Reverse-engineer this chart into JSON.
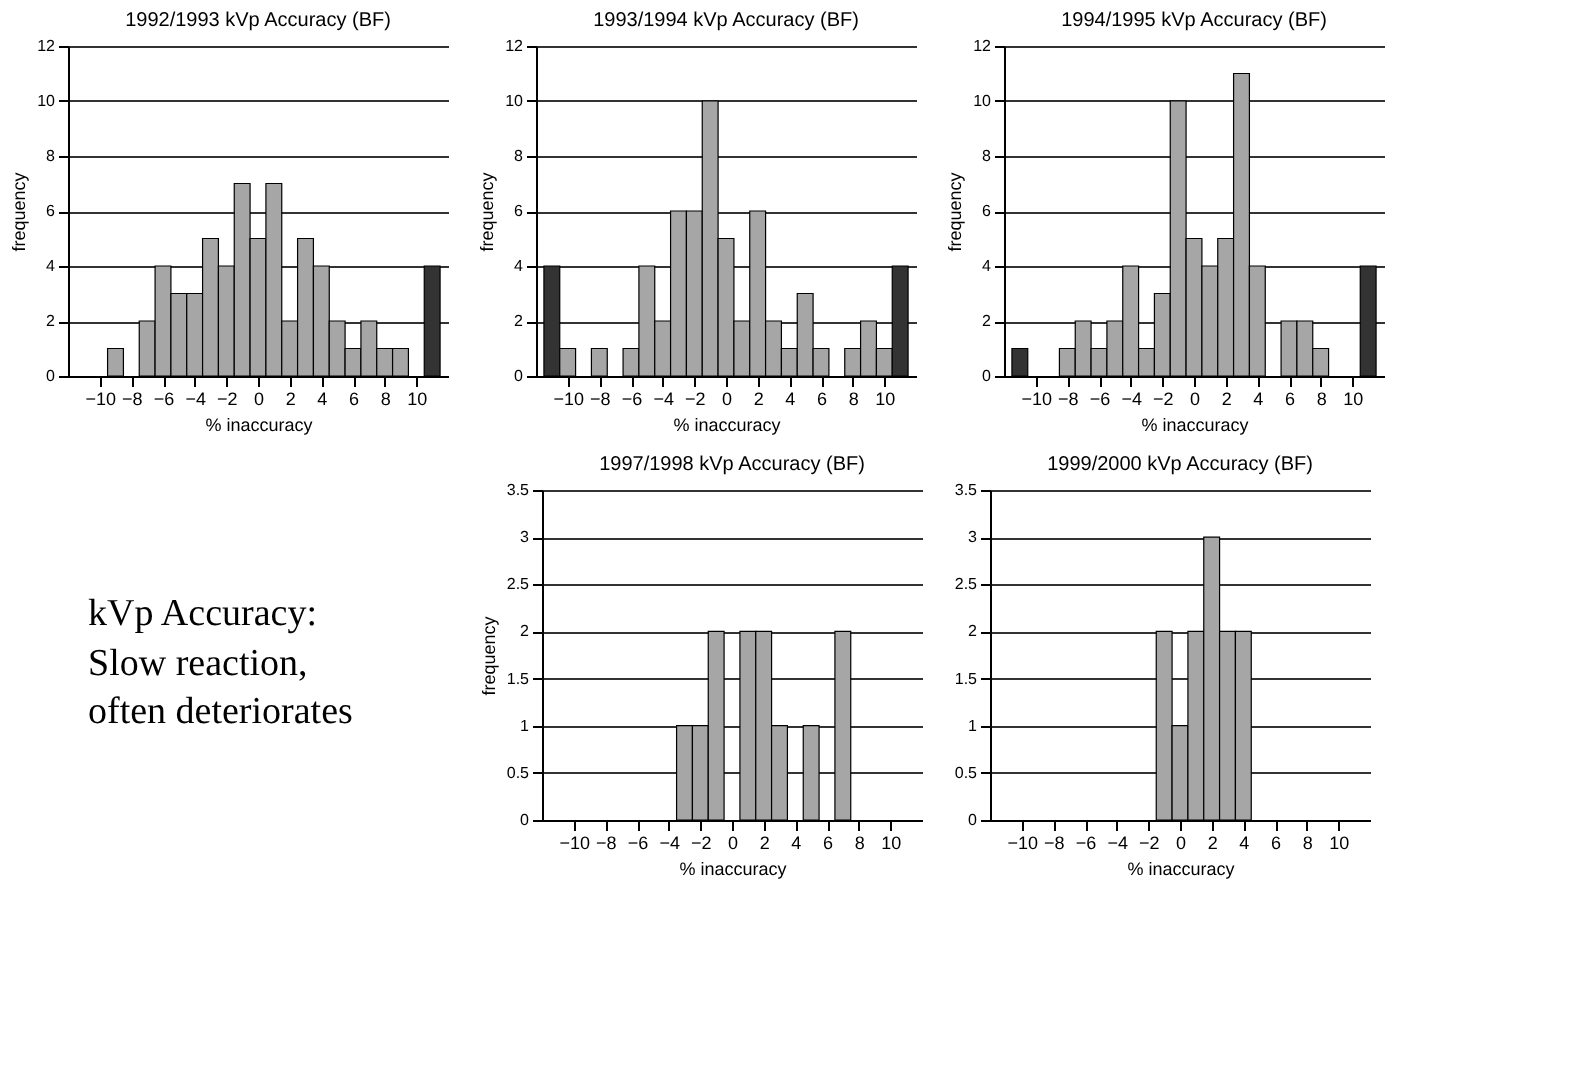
{
  "chart_data": [
    {
      "type": "bar",
      "title": "1992/1993 kVp Accuracy (BF)",
      "xlabel": "% inaccuracy",
      "ylabel": "frequency",
      "x": [
        -11,
        -10,
        -9,
        -8,
        -7,
        -6,
        -5,
        -4,
        -3,
        -2,
        -1,
        0,
        1,
        2,
        3,
        4,
        5,
        6,
        7,
        8,
        9,
        10,
        11
      ],
      "values": [
        0,
        0,
        1,
        0,
        2,
        4,
        3,
        3,
        5,
        4,
        7,
        5,
        7,
        2,
        5,
        4,
        2,
        1,
        2,
        1,
        1,
        0,
        4
      ],
      "colors": [
        "#333333",
        "#a6a6a6",
        "#a6a6a6",
        "#a6a6a6",
        "#a6a6a6",
        "#a6a6a6",
        "#a6a6a6",
        "#a6a6a6",
        "#a6a6a6",
        "#a6a6a6",
        "#a6a6a6",
        "#a6a6a6",
        "#a6a6a6",
        "#a6a6a6",
        "#a6a6a6",
        "#a6a6a6",
        "#a6a6a6",
        "#a6a6a6",
        "#a6a6a6",
        "#a6a6a6",
        "#a6a6a6",
        "#a6a6a6",
        "#333333"
      ],
      "xlim": [
        -12,
        12
      ],
      "xticks": [
        -10,
        -8,
        -6,
        -4,
        -2,
        0,
        2,
        4,
        6,
        8,
        10
      ],
      "ylim": [
        0,
        12
      ],
      "yticks": [
        0,
        2,
        4,
        6,
        8,
        10,
        12
      ],
      "grid": "y"
    },
    {
      "type": "bar",
      "title": "1993/1994 kVp Accuracy (BF)",
      "xlabel": "% inaccuracy",
      "ylabel": "frequency",
      "x": [
        -11,
        -10,
        -9,
        -8,
        -7,
        -6,
        -5,
        -4,
        -3,
        -2,
        -1,
        0,
        1,
        2,
        3,
        4,
        5,
        6,
        7,
        8,
        9,
        10,
        11
      ],
      "values": [
        4,
        1,
        0,
        1,
        0,
        1,
        4,
        2,
        6,
        6,
        10,
        5,
        2,
        6,
        2,
        1,
        3,
        1,
        0,
        1,
        2,
        1,
        4
      ],
      "colors": [
        "#333333",
        "#a6a6a6",
        "#a6a6a6",
        "#a6a6a6",
        "#a6a6a6",
        "#a6a6a6",
        "#a6a6a6",
        "#a6a6a6",
        "#a6a6a6",
        "#a6a6a6",
        "#a6a6a6",
        "#a6a6a6",
        "#a6a6a6",
        "#a6a6a6",
        "#a6a6a6",
        "#a6a6a6",
        "#a6a6a6",
        "#a6a6a6",
        "#a6a6a6",
        "#a6a6a6",
        "#a6a6a6",
        "#a6a6a6",
        "#333333"
      ],
      "xlim": [
        -12,
        12
      ],
      "xticks": [
        -10,
        -8,
        -6,
        -4,
        -2,
        0,
        2,
        4,
        6,
        8,
        10
      ],
      "ylim": [
        0,
        12
      ],
      "yticks": [
        0,
        2,
        4,
        6,
        8,
        10,
        12
      ],
      "grid": "y"
    },
    {
      "type": "bar",
      "title": "1994/1995 kVp Accuracy (BF)",
      "xlabel": "% inaccuracy",
      "ylabel": "frequency",
      "x": [
        -11,
        -10,
        -9,
        -8,
        -7,
        -6,
        -5,
        -4,
        -3,
        -2,
        -1,
        0,
        1,
        2,
        3,
        4,
        5,
        6,
        7,
        8,
        9,
        10,
        11
      ],
      "values": [
        1,
        0,
        0,
        1,
        2,
        1,
        2,
        4,
        1,
        3,
        10,
        5,
        4,
        5,
        11,
        4,
        0,
        2,
        2,
        1,
        0,
        0,
        4
      ],
      "colors": [
        "#333333",
        "#a6a6a6",
        "#a6a6a6",
        "#a6a6a6",
        "#a6a6a6",
        "#a6a6a6",
        "#a6a6a6",
        "#a6a6a6",
        "#a6a6a6",
        "#a6a6a6",
        "#a6a6a6",
        "#a6a6a6",
        "#a6a6a6",
        "#a6a6a6",
        "#a6a6a6",
        "#a6a6a6",
        "#a6a6a6",
        "#a6a6a6",
        "#a6a6a6",
        "#a6a6a6",
        "#a6a6a6",
        "#a6a6a6",
        "#333333"
      ],
      "xlim": [
        -12,
        12
      ],
      "xticks": [
        -10,
        -8,
        -6,
        -4,
        -2,
        0,
        2,
        4,
        6,
        8,
        10
      ],
      "ylim": [
        0,
        12
      ],
      "yticks": [
        0,
        2,
        4,
        6,
        8,
        10,
        12
      ],
      "grid": "y"
    },
    {
      "type": "other",
      "annotations": [
        "kVp Accuracy:",
        "Slow reaction,\noften deteriorates"
      ]
    },
    {
      "type": "bar",
      "title": "1997/1998 kVp Accuracy (BF)",
      "xlabel": "% inaccuracy",
      "ylabel": "frequency",
      "x": [
        -11,
        -10,
        -9,
        -8,
        -7,
        -6,
        -5,
        -4,
        -3,
        -2,
        -1,
        0,
        1,
        2,
        3,
        4,
        5,
        6,
        7,
        8,
        9,
        10,
        11
      ],
      "values": [
        0,
        0,
        0,
        0,
        0,
        0,
        0,
        0,
        1,
        1,
        2,
        0,
        2,
        2,
        1,
        0,
        1,
        0,
        2,
        0,
        0,
        0,
        0
      ],
      "color": "#a6a6a6",
      "xlim": [
        -12,
        12
      ],
      "xticks": [
        -10,
        -8,
        -6,
        -4,
        -2,
        0,
        2,
        4,
        6,
        8,
        10
      ],
      "ylim": [
        0,
        3.5
      ],
      "yticks": [
        0,
        0.5,
        1,
        1.5,
        2,
        2.5,
        3,
        3.5
      ],
      "grid": "y"
    },
    {
      "type": "bar",
      "title": "1999/2000 kVp Accuracy (BF)",
      "xlabel": "% inaccuracy",
      "x": [
        -11,
        -10,
        -9,
        -8,
        -7,
        -6,
        -5,
        -4,
        -3,
        -2,
        -1,
        0,
        1,
        2,
        3,
        4,
        5,
        6,
        7,
        8,
        9,
        10,
        11
      ],
      "values": [
        0,
        0,
        0,
        0,
        0,
        0,
        0,
        0,
        0,
        0,
        2,
        1,
        2,
        3,
        2,
        2,
        0,
        0,
        0,
        0,
        0,
        0,
        0
      ],
      "color": "#a6a6a6",
      "xlim": [
        -12,
        12
      ],
      "xticks": [
        -10,
        -8,
        -6,
        -4,
        -2,
        0,
        2,
        4,
        6,
        8,
        10
      ],
      "ylim": [
        0,
        3.5
      ],
      "yticks": [
        0,
        0.5,
        1,
        1.5,
        2,
        2.5,
        3,
        3.5
      ],
      "grid": "y"
    }
  ]
}
